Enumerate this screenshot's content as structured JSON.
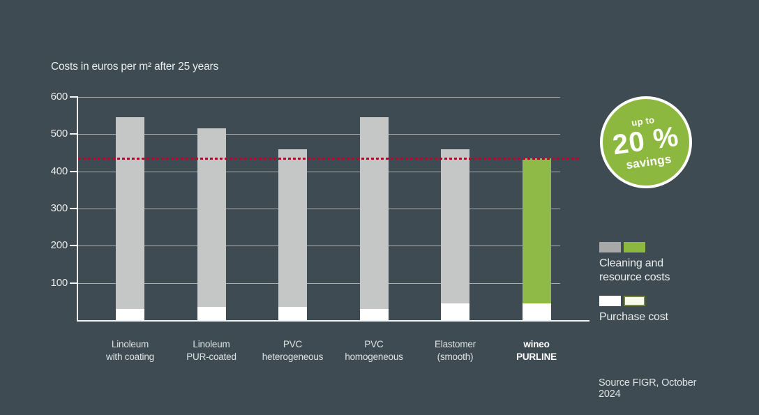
{
  "title": "Costs in euros per m² after 25 years",
  "source_note": "Source FIGR, October 2024",
  "badge": {
    "line1": "up to",
    "line2": "20 %",
    "line3": "savings"
  },
  "legend": {
    "cleaning_line1": "Cleaning and",
    "cleaning_line2": "resource costs",
    "purchase_label": "Purchase cost"
  },
  "colors": {
    "background": "#3E4B53",
    "bar_gray": "#C5C6C6",
    "bar_green": "#8FBA47",
    "bar_white": "#FFFFFF",
    "badge_green": "#8CB83F",
    "legend_gray": "#A7A8A8",
    "reference_red": "#A8112A",
    "axis_white": "#F2F5F5",
    "text": "#E9EDEC"
  },
  "chart_data": {
    "type": "bar",
    "stacked": true,
    "title": "Costs in euros per m² after 25 years",
    "categories": [
      "Linoleum with coating",
      "Linoleum PUR-coated",
      "PVC heterogeneous",
      "PVC homogeneous",
      "Elastomer (smooth)",
      "wineo PURLINE"
    ],
    "category_labels": [
      [
        "Linoleum",
        "with coating"
      ],
      [
        "Linoleum",
        "PUR-coated"
      ],
      [
        "PVC",
        "heterogeneous"
      ],
      [
        "PVC",
        "homogeneous"
      ],
      [
        "Elastomer",
        "(smooth)"
      ],
      [
        "wineo",
        "PURLINE"
      ]
    ],
    "series": [
      {
        "name": "Purchase cost",
        "values": [
          30,
          35,
          35,
          30,
          45,
          45
        ]
      },
      {
        "name": "Cleaning and resource costs",
        "values": [
          515,
          480,
          425,
          515,
          415,
          390
        ]
      }
    ],
    "totals": [
      545,
      515,
      460,
      545,
      460,
      435
    ],
    "highlight_index": 5,
    "highlight_category": "wineo PURLINE",
    "ylim": [
      0,
      600
    ],
    "yticks": [
      600,
      500,
      400,
      300,
      200,
      100
    ],
    "grid": true,
    "legend_position": "right",
    "reference_line": {
      "value": 435,
      "style": "dashed",
      "color": "#A8112A"
    }
  }
}
